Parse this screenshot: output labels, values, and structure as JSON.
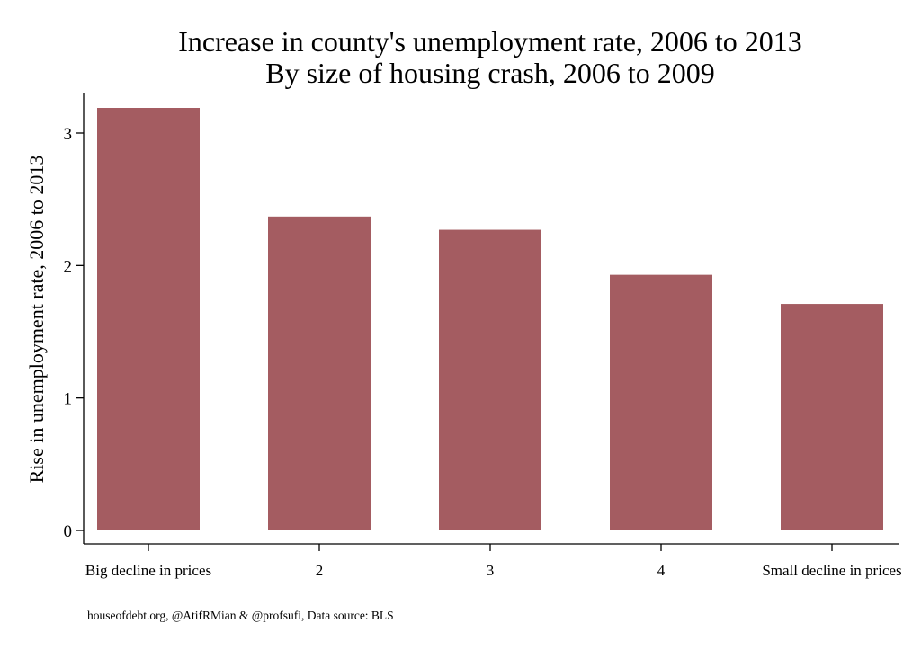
{
  "chart_data": {
    "type": "bar",
    "title": "Increase in county's unemployment rate, 2006 to 2013",
    "subtitle": "By size of housing crash, 2006 to 2009",
    "xlabel": "",
    "ylabel": "Rise in unemployment rate, 2006 to 2013",
    "categories": [
      "Big decline in prices",
      "2",
      "3",
      "4",
      "Small decline in prices"
    ],
    "values": [
      3.19,
      2.37,
      2.27,
      1.93,
      1.71
    ],
    "ylim": [
      0,
      3.3
    ],
    "yticks": [
      0,
      1,
      2,
      3
    ],
    "bar_color": "#a45c61",
    "grid": false,
    "legend": "none"
  },
  "footer": {
    "note": "houseofdebt.org, @AtifRMian & @profsufi, Data source: BLS"
  }
}
